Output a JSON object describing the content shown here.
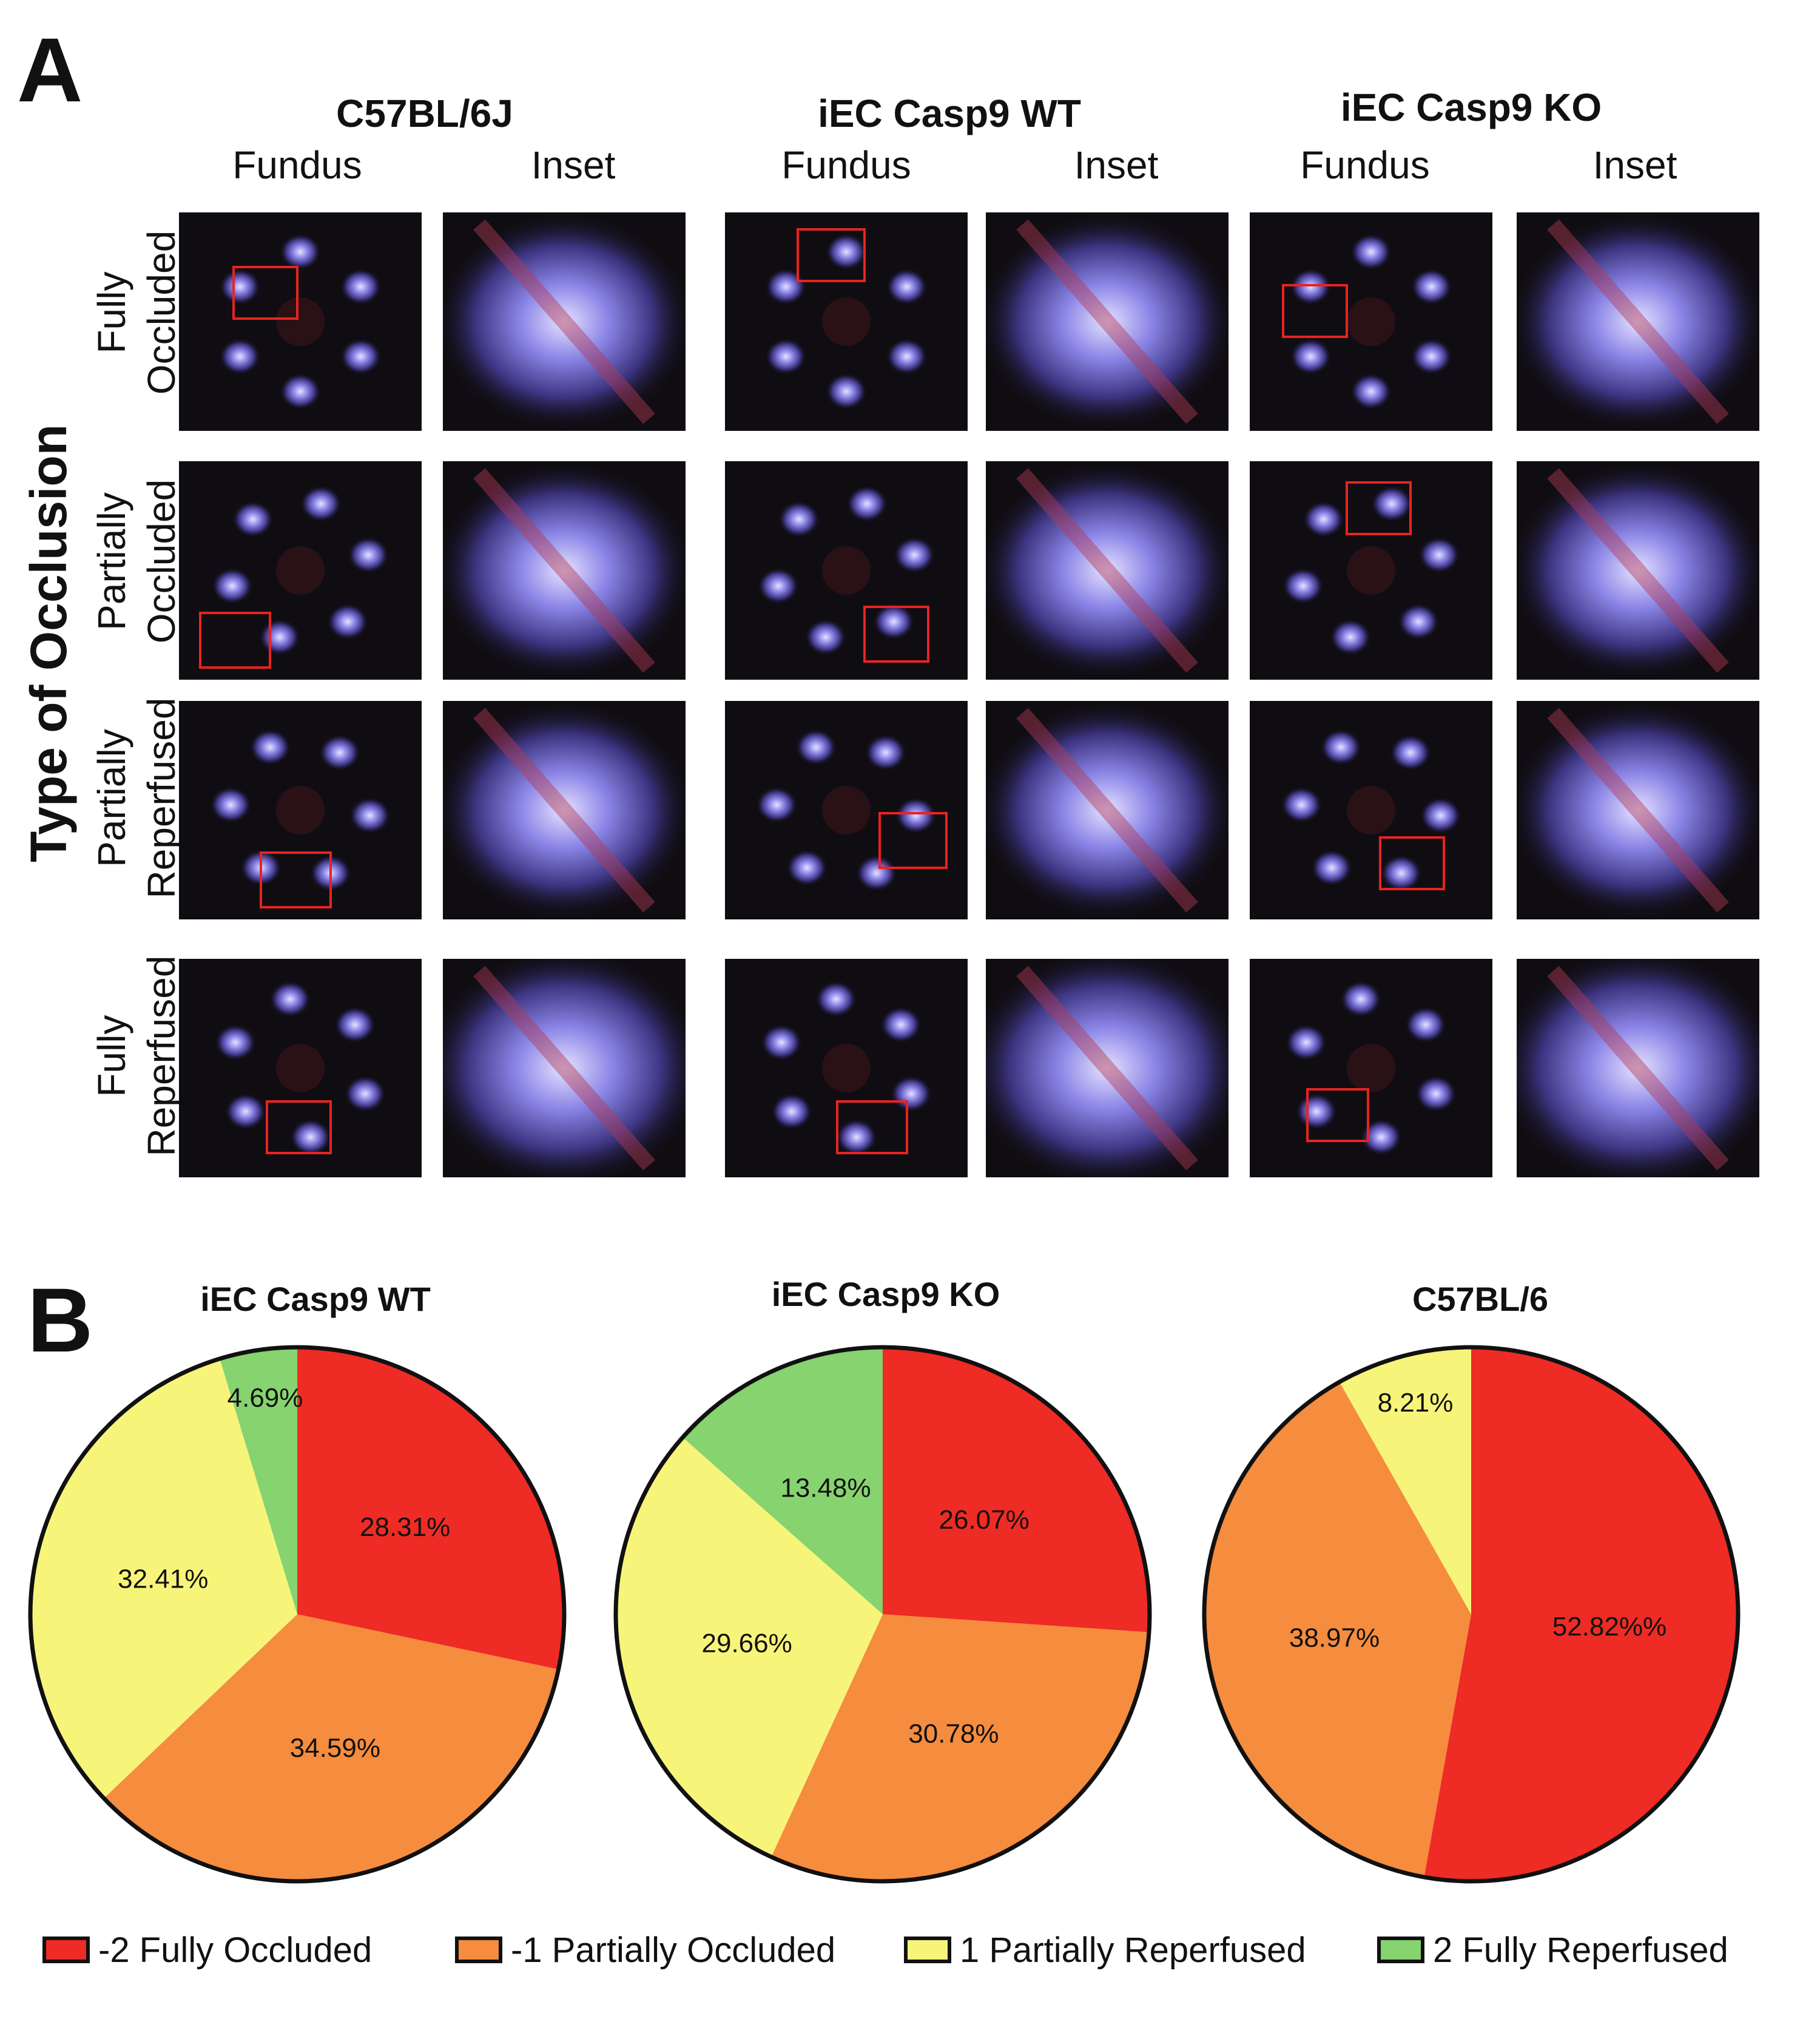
{
  "panel_a": {
    "letter": "A",
    "groups": [
      "C57BL/6J",
      "iEC Casp9  WT",
      "iEC Casp9 KO"
    ],
    "column_labels": [
      "Fundus",
      "Inset"
    ],
    "y_axis_title": "Type of Occlusion",
    "rows": [
      {
        "line1": "Fully",
        "line2": "Occluded"
      },
      {
        "line1": "Partially",
        "line2": "Occluded"
      },
      {
        "line1": "Partially",
        "line2": "Reperfused"
      },
      {
        "line1": "Fully",
        "line2": "Reperfused"
      }
    ]
  },
  "panel_b": {
    "letter": "B"
  },
  "colors": {
    "fully_occluded": "#EE2B24",
    "partially_occluded": "#F58C3E",
    "partially_reperfused": "#F7F47A",
    "fully_reperfused": "#86D36F"
  },
  "chart_data": [
    {
      "type": "pie",
      "title": "iEC Casp9 WT",
      "categories": [
        "-2 Fully Occluded",
        "-1 Partially Occluded",
        "1 Partially Reperfused",
        "2 Fully Reperfused"
      ],
      "values": [
        28.31,
        34.59,
        32.41,
        4.69
      ],
      "labels": [
        "28.31%",
        "34.59%",
        "32.41%",
        "4.69%"
      ]
    },
    {
      "type": "pie",
      "title": "iEC Casp9 KO",
      "categories": [
        "-2 Fully Occluded",
        "-1 Partially Occluded",
        "1 Partially Reperfused",
        "2 Fully Reperfused"
      ],
      "values": [
        26.07,
        30.78,
        29.66,
        13.48
      ],
      "labels": [
        "26.07%",
        "30.78%",
        "29.66%",
        "13.48%"
      ]
    },
    {
      "type": "pie",
      "title": "C57BL/6",
      "categories": [
        "-2 Fully Occluded",
        "-1 Partially Occluded",
        "1 Partially Reperfused",
        "2 Fully Reperfused"
      ],
      "values": [
        52.82,
        38.97,
        8.21,
        0
      ],
      "labels": [
        "52.82%%",
        "38.97%",
        "8.21%",
        ""
      ]
    }
  ],
  "legend": {
    "items": [
      {
        "label": "-2 Fully Occluded",
        "color": "#EE2B24"
      },
      {
        "label": "-1 Partially Occluded",
        "color": "#F58C3E"
      },
      {
        "label": "1 Partially Reperfused",
        "color": "#F7F47A"
      },
      {
        "label": "2 Fully Reperfused",
        "color": "#86D36F"
      }
    ]
  }
}
